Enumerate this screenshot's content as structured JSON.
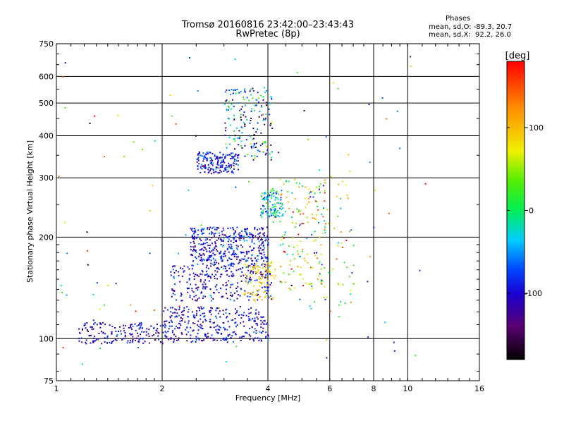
{
  "header": {
    "title_line1": "Tromsø 20160816 23:42:00–23:43:43",
    "title_line2": "RwPretec (8p)"
  },
  "stats": {
    "heading": "Phases",
    "line1": "mean, sd,O: -89.3, 20.7",
    "line2": "mean, sd,X:  92.2, 26.0"
  },
  "colorbar": {
    "unit": "[deg]",
    "ticks": [
      {
        "label": "100",
        "value": 100
      },
      {
        "label": "0",
        "value": 0
      },
      {
        "label": "-100",
        "value": -100
      }
    ],
    "range": [
      -180,
      180
    ]
  },
  "chart_data": {
    "type": "scatter",
    "xlabel": "Frequency [MHz]",
    "ylabel": "Stationary phase Virtual Height [km]",
    "xscale": "log",
    "yscale": "log",
    "xlim": [
      1,
      16
    ],
    "ylim": [
      75,
      750
    ],
    "xticks": [
      1,
      2,
      4,
      6,
      8,
      10,
      16
    ],
    "xtick_labels": [
      "1",
      "2",
      "4",
      "6",
      "8",
      "10",
      "16"
    ],
    "yticks": [
      75,
      100,
      200,
      300,
      400,
      500,
      600,
      750
    ],
    "ytick_labels": [
      "75",
      "100",
      "200",
      "300",
      "400",
      "500",
      "600",
      "750"
    ],
    "grid": true,
    "color_encoding": "phase [deg]",
    "clusters": [
      {
        "x_range": [
          1.15,
          2.0
        ],
        "y_range": [
          97,
          112
        ],
        "phase_mean": -105,
        "phase_sd": 20,
        "count": 160
      },
      {
        "x_range": [
          2.0,
          4.0
        ],
        "y_range": [
          98,
          125
        ],
        "phase_mean": -100,
        "phase_sd": 22,
        "count": 320
      },
      {
        "x_range": [
          2.1,
          4.1
        ],
        "y_range": [
          130,
          165
        ],
        "phase_mean": -100,
        "phase_sd": 25,
        "count": 260
      },
      {
        "x_range": [
          2.4,
          4.0
        ],
        "y_range": [
          165,
          215
        ],
        "phase_mean": -95,
        "phase_sd": 25,
        "count": 420
      },
      {
        "x_range": [
          3.4,
          4.2
        ],
        "y_range": [
          130,
          170
        ],
        "phase_mean": 95,
        "phase_sd": 20,
        "count": 90
      },
      {
        "x_range": [
          2.5,
          3.3
        ],
        "y_range": [
          310,
          360
        ],
        "phase_mean": -90,
        "phase_sd": 25,
        "count": 170
      },
      {
        "x_range": [
          3.0,
          4.1
        ],
        "y_range": [
          340,
          560
        ],
        "phase_mean": -60,
        "phase_sd": 60,
        "count": 180
      },
      {
        "x_range": [
          3.8,
          4.4
        ],
        "y_range": [
          230,
          280
        ],
        "phase_mean": -30,
        "phase_sd": 40,
        "count": 110
      },
      {
        "x_range": [
          4.3,
          5.8
        ],
        "y_range": [
          140,
          300
        ],
        "phase_mean": 60,
        "phase_sd": 60,
        "count": 140
      },
      {
        "x_range": [
          5.2,
          7.0
        ],
        "y_range": [
          120,
          320
        ],
        "phase_mean": 30,
        "phase_sd": 80,
        "count": 70
      },
      {
        "x_range": [
          1.0,
          13.0
        ],
        "y_range": [
          80,
          700
        ],
        "phase_mean": 0,
        "phase_sd": 100,
        "count": 110
      }
    ]
  }
}
